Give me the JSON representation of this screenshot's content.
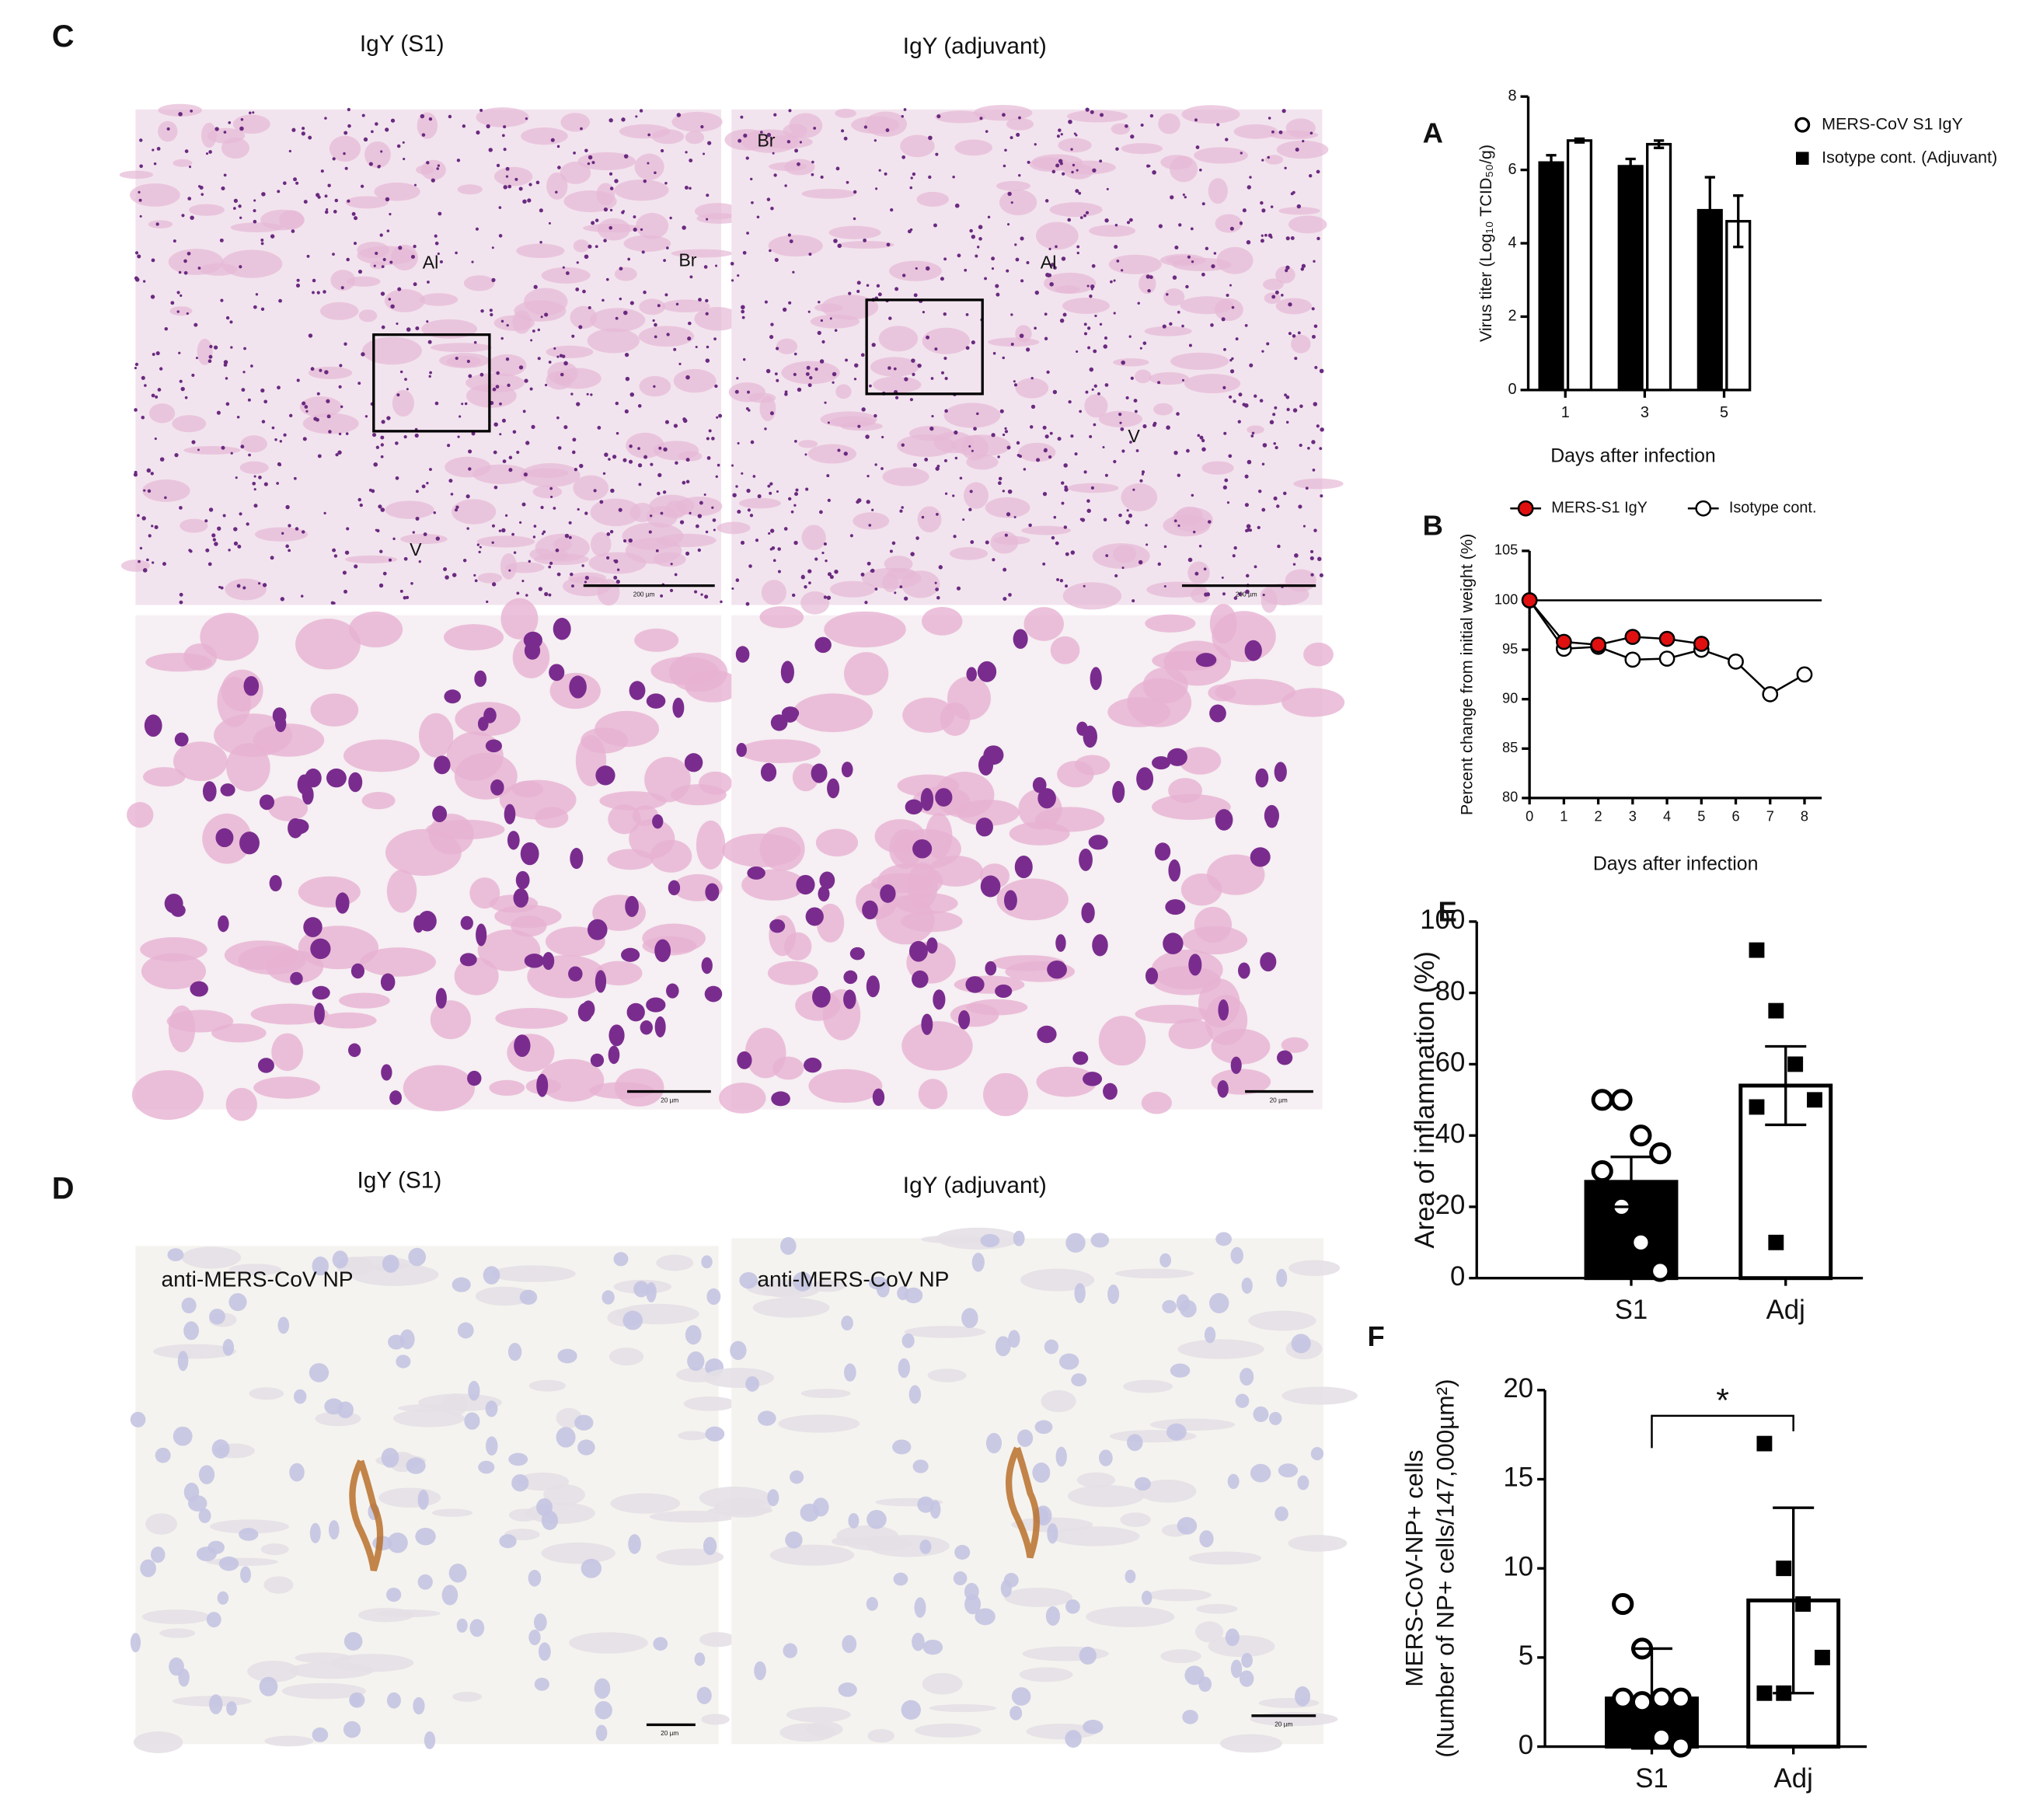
{
  "micrographs": {
    "panel_c": "C",
    "panel_d": "D",
    "c_titles": [
      "IgY (S1)",
      "IgY (adjuvant)"
    ],
    "d_titles": [
      "IgY (S1)",
      "IgY (adjuvant)"
    ],
    "c1_labels": [
      "Al",
      "Br",
      "V"
    ],
    "c2_labels": [
      "Br",
      "Al",
      "V"
    ],
    "stain": "anti-MERS-CoV NP",
    "scale_low": "200 µm",
    "scale_high": "20 µm"
  },
  "chart_data": [
    {
      "type": "bar",
      "panel": "A",
      "categories": [
        "1",
        "3",
        "5"
      ],
      "series": [
        {
          "name": "MERS-CoV S1 IgY",
          "color": "#000000",
          "values": [
            6.2,
            6.1,
            4.9
          ],
          "errors": [
            0.2,
            0.2,
            0.9
          ]
        },
        {
          "name": "Isotype cont. (Adjuvant)",
          "color": "#ffffff",
          "values": [
            6.8,
            6.7,
            4.6
          ],
          "errors": [
            0.05,
            0.1,
            0.7
          ]
        }
      ],
      "xlabel": "Days after infection",
      "ylabel": "Virus titer (Log₁₀ TCID₅₀/g)",
      "ylim": [
        0,
        8
      ],
      "yticks": [
        0,
        2,
        4,
        6,
        8
      ]
    },
    {
      "type": "line",
      "panel": "B",
      "x": [
        0,
        1,
        2,
        3,
        4,
        5,
        6,
        7,
        8
      ],
      "series": [
        {
          "name": "MERS-S1 IgY",
          "color": "#e01010",
          "values": [
            100,
            95.8,
            95.5,
            96.3,
            96.1,
            95.6,
            null,
            null,
            null
          ]
        },
        {
          "name": "Isotype cont.",
          "color": "#ffffff",
          "values": [
            100,
            95.1,
            95.3,
            94,
            94.1,
            95,
            93.8,
            90.5,
            92.5
          ]
        }
      ],
      "reference_line": 100,
      "xlabel": "Days after infection",
      "ylabel": "Percent change from initial weight (%)",
      "xlim": [
        0,
        8.5
      ],
      "xticks": [
        0,
        1,
        2,
        3,
        4,
        5,
        6,
        7,
        8
      ],
      "ylim": [
        80,
        105
      ],
      "yticks": [
        80,
        85,
        90,
        95,
        100,
        105
      ]
    },
    {
      "type": "bar",
      "panel": "E",
      "categories": [
        "S1",
        "Adj"
      ],
      "values": [
        27,
        54
      ],
      "errors": [
        7,
        11
      ],
      "colors": [
        "#000000",
        "#ffffff"
      ],
      "points": [
        [
          50,
          50,
          40,
          35,
          30,
          20,
          10,
          2
        ],
        [
          92,
          75,
          60,
          50,
          48,
          10
        ]
      ],
      "ylabel": "Area of inflammation (%)",
      "ylim": [
        0,
        100
      ],
      "yticks": [
        0,
        20,
        40,
        60,
        80,
        100
      ]
    },
    {
      "type": "bar",
      "panel": "F",
      "categories": [
        "S1",
        "Adj"
      ],
      "values": [
        2.7,
        8.2
      ],
      "errors": [
        2.8,
        5.2
      ],
      "colors": [
        "#000000",
        "#ffffff"
      ],
      "points": [
        [
          8,
          5.5,
          2.7,
          2.7,
          2.7,
          2.5,
          0.5,
          0
        ],
        [
          17,
          10,
          8,
          5,
          3,
          3
        ]
      ],
      "ylabel": [
        "MERS-CoV-NP+ cells",
        "(Number of NP+ cells/147,000µm²)"
      ],
      "annotation": "*",
      "ylim": [
        0,
        20
      ],
      "yticks": [
        0,
        5,
        10,
        15,
        20
      ]
    }
  ]
}
